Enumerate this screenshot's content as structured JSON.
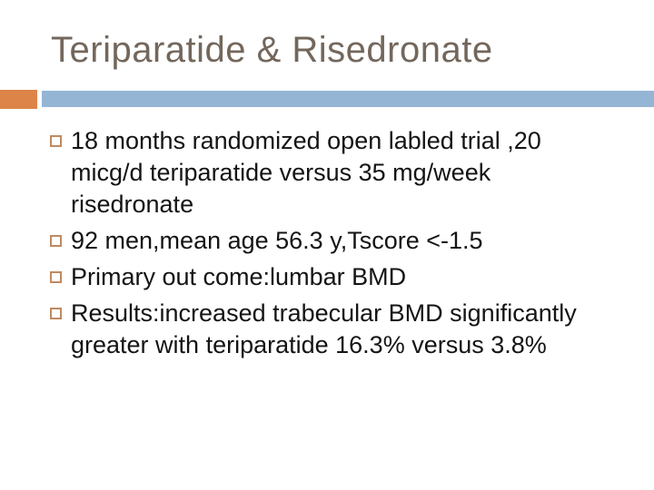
{
  "slide": {
    "title": "Teriparatide & Risedronate",
    "bullets": [
      {
        "lines": [
          "18 months randomized open labled trial ,20",
          "micg/d teriparatide versus 35 mg/week",
          "risedronate"
        ]
      },
      {
        "lines": [
          "92 men,mean age 56.3 y,Tscore <-1.5"
        ]
      },
      {
        "lines": [
          "Primary out come:lumbar BMD"
        ]
      },
      {
        "lines": [
          "Results:increased trabecular BMD significantly",
          "greater with teriparatide 16.3% versus 3.8%"
        ]
      }
    ],
    "colors": {
      "title_text": "#73675C",
      "body_text": "#141414",
      "accent_orange": "#DD8448",
      "band_blue": "#95B5D5",
      "bullet_border": "#BF8A61",
      "background": "#FFFFFF"
    }
  }
}
